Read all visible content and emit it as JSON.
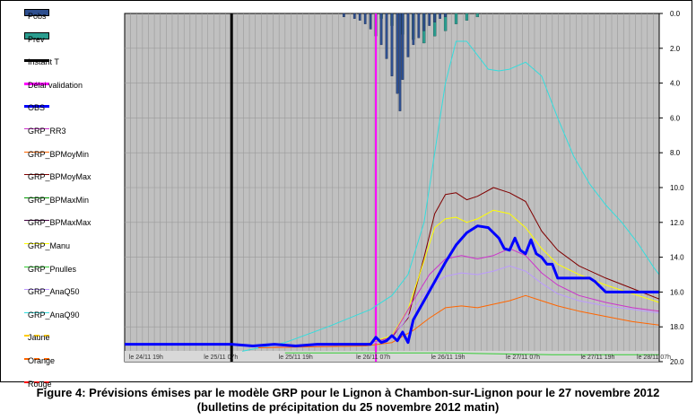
{
  "caption": {
    "line1": "Figure 4: Prévisions émises par le modèle GRP pour le Lignon à Chambon-sur-Lignon pour le 27 novembre 2012",
    "line2": "(bulletins de précipitation du 25 novembre 2012 matin)"
  },
  "legend": [
    {
      "label": "Pobs",
      "color": "#2e4f8f",
      "style": "bar"
    },
    {
      "label": "Prev",
      "color": "#2a9d8f",
      "style": "bar"
    },
    {
      "label": "Instant T",
      "color": "#000000",
      "style": "thick"
    },
    {
      "label": "Délai validation",
      "color": "#ff00ff",
      "style": "thick"
    },
    {
      "label": "OBS",
      "color": "#0000ff",
      "style": "thick"
    },
    {
      "label": "GRP_RR3",
      "color": "#cc33cc",
      "style": "line"
    },
    {
      "label": "GRP_BPMoyMin",
      "color": "#ff6600",
      "style": "line"
    },
    {
      "label": "GRP_BPMoyMax",
      "color": "#800000",
      "style": "line"
    },
    {
      "label": "GRP_BPMaxMin",
      "color": "#009900",
      "style": "line"
    },
    {
      "label": "GRP_BPMaxMax",
      "color": "#400040",
      "style": "line"
    },
    {
      "label": "GRP_Manu",
      "color": "#ffff00",
      "style": "line"
    },
    {
      "label": "GRP_Pnulles",
      "color": "#33cc33",
      "style": "line"
    },
    {
      "label": "GRP_AnaQ50",
      "color": "#bb99ff",
      "style": "line"
    },
    {
      "label": "GRP_AnaQ90",
      "color": "#33dddd",
      "style": "line"
    },
    {
      "label": "Jaune",
      "color": "#ffcc00",
      "style": "dash"
    },
    {
      "label": "Orange",
      "color": "#ff6600",
      "style": "dash"
    },
    {
      "label": "Rouge",
      "color": "#ff0000",
      "style": "dash"
    }
  ],
  "chart_data": {
    "type": "line",
    "title": "",
    "xlim": [
      0,
      1
    ],
    "x_ticks": [
      {
        "x": 0.04,
        "label": "le 24/11 19h"
      },
      {
        "x": 0.18,
        "label": "le 25/11 07h"
      },
      {
        "x": 0.32,
        "label": "le 25/11 19h"
      },
      {
        "x": 0.465,
        "label": "le 26/11 07h"
      },
      {
        "x": 0.605,
        "label": "le 26/11 19h"
      },
      {
        "x": 0.745,
        "label": "le 27/11 07h"
      },
      {
        "x": 0.885,
        "label": "le 27/11 19h"
      },
      {
        "x": 0.99,
        "label": "le 28/11 07h"
      }
    ],
    "y_right_ticks": [
      "0.0",
      "2.0",
      "4.0",
      "6.0",
      "8.0",
      "10.0",
      "12.0",
      "14.0",
      "16.0",
      "18.0",
      "20.0"
    ],
    "y_right_range": [
      0,
      20
    ],
    "grid": true,
    "legend_position": "left",
    "instant_t_x": 0.2,
    "delai_validation_x": 0.47,
    "series": [
      {
        "name": "GRP_AnaQ90",
        "color": "#33dddd",
        "points": [
          [
            0.22,
            19.4
          ],
          [
            0.3,
            18.9
          ],
          [
            0.38,
            18.0
          ],
          [
            0.46,
            17.0
          ],
          [
            0.5,
            16.2
          ],
          [
            0.53,
            15.0
          ],
          [
            0.56,
            12.0
          ],
          [
            0.58,
            8.0
          ],
          [
            0.6,
            4.0
          ],
          [
            0.62,
            1.6
          ],
          [
            0.64,
            1.6
          ],
          [
            0.66,
            2.4
          ],
          [
            0.68,
            3.2
          ],
          [
            0.7,
            3.3
          ],
          [
            0.72,
            3.2
          ],
          [
            0.75,
            2.8
          ],
          [
            0.78,
            3.6
          ],
          [
            0.81,
            6.0
          ],
          [
            0.84,
            8.2
          ],
          [
            0.87,
            9.8
          ],
          [
            0.9,
            11.0
          ],
          [
            0.93,
            12.0
          ],
          [
            0.96,
            13.2
          ],
          [
            0.99,
            14.6
          ],
          [
            1.0,
            15.0
          ]
        ]
      },
      {
        "name": "GRP_BPMoyMax",
        "color": "#800000",
        "points": [
          [
            0.25,
            19.2
          ],
          [
            0.45,
            19.0
          ],
          [
            0.5,
            18.6
          ],
          [
            0.53,
            17.5
          ],
          [
            0.56,
            14.0
          ],
          [
            0.58,
            11.5
          ],
          [
            0.6,
            10.4
          ],
          [
            0.62,
            10.3
          ],
          [
            0.64,
            10.7
          ],
          [
            0.66,
            10.5
          ],
          [
            0.69,
            10.0
          ],
          [
            0.72,
            10.3
          ],
          [
            0.75,
            10.8
          ],
          [
            0.78,
            12.5
          ],
          [
            0.81,
            13.6
          ],
          [
            0.85,
            14.5
          ],
          [
            0.9,
            15.2
          ],
          [
            0.95,
            15.8
          ],
          [
            1.0,
            16.4
          ]
        ]
      },
      {
        "name": "GRP_Manu",
        "color": "#ffff00",
        "points": [
          [
            0.25,
            19.2
          ],
          [
            0.45,
            19.0
          ],
          [
            0.5,
            18.5
          ],
          [
            0.53,
            17.0
          ],
          [
            0.56,
            14.2
          ],
          [
            0.58,
            12.3
          ],
          [
            0.6,
            11.8
          ],
          [
            0.62,
            11.7
          ],
          [
            0.64,
            12.0
          ],
          [
            0.66,
            11.8
          ],
          [
            0.69,
            11.3
          ],
          [
            0.72,
            11.5
          ],
          [
            0.75,
            12.3
          ],
          [
            0.78,
            13.5
          ],
          [
            0.81,
            14.4
          ],
          [
            0.85,
            15.0
          ],
          [
            0.9,
            15.6
          ],
          [
            0.95,
            16.1
          ],
          [
            1.0,
            16.6
          ]
        ]
      },
      {
        "name": "GRP_RR3",
        "color": "#cc33cc",
        "points": [
          [
            0.25,
            19.2
          ],
          [
            0.45,
            19.0
          ],
          [
            0.5,
            18.6
          ],
          [
            0.54,
            16.5
          ],
          [
            0.57,
            15.0
          ],
          [
            0.6,
            14.1
          ],
          [
            0.63,
            13.9
          ],
          [
            0.66,
            14.1
          ],
          [
            0.69,
            13.9
          ],
          [
            0.72,
            13.5
          ],
          [
            0.75,
            13.9
          ],
          [
            0.78,
            14.9
          ],
          [
            0.81,
            15.6
          ],
          [
            0.85,
            16.2
          ],
          [
            0.9,
            16.6
          ],
          [
            0.95,
            16.9
          ],
          [
            1.0,
            17.1
          ]
        ]
      },
      {
        "name": "GRP_AnaQ50",
        "color": "#bb99ff",
        "points": [
          [
            0.25,
            19.2
          ],
          [
            0.45,
            19.0
          ],
          [
            0.5,
            18.7
          ],
          [
            0.54,
            17.0
          ],
          [
            0.57,
            15.7
          ],
          [
            0.6,
            15.1
          ],
          [
            0.63,
            14.9
          ],
          [
            0.66,
            15.0
          ],
          [
            0.69,
            14.8
          ],
          [
            0.72,
            14.5
          ],
          [
            0.75,
            14.8
          ],
          [
            0.78,
            15.5
          ],
          [
            0.81,
            16.1
          ],
          [
            0.85,
            16.5
          ],
          [
            0.9,
            16.8
          ],
          [
            0.95,
            17.0
          ],
          [
            1.0,
            17.2
          ]
        ]
      },
      {
        "name": "GRP_BPMoyMin",
        "color": "#ff6600",
        "points": [
          [
            0.25,
            19.2
          ],
          [
            0.45,
            19.1
          ],
          [
            0.5,
            18.9
          ],
          [
            0.54,
            18.2
          ],
          [
            0.57,
            17.5
          ],
          [
            0.6,
            16.9
          ],
          [
            0.63,
            16.8
          ],
          [
            0.66,
            16.9
          ],
          [
            0.69,
            16.7
          ],
          [
            0.72,
            16.5
          ],
          [
            0.75,
            16.2
          ],
          [
            0.78,
            16.5
          ],
          [
            0.81,
            16.8
          ],
          [
            0.85,
            17.1
          ],
          [
            0.9,
            17.4
          ],
          [
            0.95,
            17.7
          ],
          [
            1.0,
            17.9
          ]
        ]
      },
      {
        "name": "GRP_Pnulles",
        "color": "#33cc33",
        "points": [
          [
            0.3,
            19.5
          ],
          [
            0.5,
            19.5
          ],
          [
            0.6,
            19.5
          ],
          [
            0.8,
            19.6
          ],
          [
            1.0,
            19.6
          ]
        ]
      },
      {
        "name": "OBS",
        "color": "#0000ff",
        "width": 3,
        "points": [
          [
            0.0,
            19.0
          ],
          [
            0.2,
            19.0
          ],
          [
            0.24,
            19.1
          ],
          [
            0.28,
            19.0
          ],
          [
            0.32,
            19.1
          ],
          [
            0.36,
            19.0
          ],
          [
            0.42,
            19.0
          ],
          [
            0.46,
            19.0
          ],
          [
            0.47,
            18.6
          ],
          [
            0.48,
            18.9
          ],
          [
            0.49,
            18.8
          ],
          [
            0.5,
            18.5
          ],
          [
            0.51,
            18.8
          ],
          [
            0.52,
            18.3
          ],
          [
            0.53,
            18.9
          ],
          [
            0.54,
            17.6
          ],
          [
            0.56,
            16.5
          ],
          [
            0.58,
            15.4
          ],
          [
            0.6,
            14.3
          ],
          [
            0.62,
            13.3
          ],
          [
            0.64,
            12.6
          ],
          [
            0.66,
            12.2
          ],
          [
            0.68,
            12.3
          ],
          [
            0.7,
            12.9
          ],
          [
            0.71,
            13.5
          ],
          [
            0.72,
            13.6
          ],
          [
            0.73,
            12.9
          ],
          [
            0.74,
            13.6
          ],
          [
            0.75,
            13.8
          ],
          [
            0.76,
            13.0
          ],
          [
            0.77,
            13.8
          ],
          [
            0.78,
            14.0
          ],
          [
            0.79,
            14.4
          ],
          [
            0.8,
            14.4
          ],
          [
            0.81,
            15.2
          ],
          [
            0.83,
            15.2
          ],
          [
            0.87,
            15.2
          ],
          [
            0.88,
            15.4
          ],
          [
            0.9,
            16.0
          ],
          [
            0.92,
            16.0
          ],
          [
            0.95,
            16.0
          ],
          [
            0.97,
            16.0
          ],
          [
            0.99,
            16.0
          ],
          [
            1.0,
            16.0
          ]
        ]
      }
    ],
    "rain_obs": [
      [
        0.41,
        0.2
      ],
      [
        0.43,
        0.3
      ],
      [
        0.44,
        0.4
      ],
      [
        0.45,
        0.6
      ],
      [
        0.46,
        0.9
      ],
      [
        0.47,
        1.3
      ],
      [
        0.48,
        1.8
      ],
      [
        0.49,
        2.6
      ],
      [
        0.5,
        3.6
      ],
      [
        0.51,
        4.6
      ],
      [
        0.515,
        5.6
      ],
      [
        0.52,
        3.8
      ],
      [
        0.53,
        2.5
      ],
      [
        0.54,
        1.8
      ],
      [
        0.55,
        1.4
      ],
      [
        0.56,
        1.0
      ],
      [
        0.57,
        0.7
      ],
      [
        0.58,
        0.5
      ],
      [
        0.59,
        0.3
      ],
      [
        0.6,
        0.2
      ]
    ],
    "rain_prev": [
      [
        0.48,
        0.3
      ],
      [
        0.5,
        0.7
      ],
      [
        0.52,
        1.2
      ],
      [
        0.54,
        1.5
      ],
      [
        0.56,
        1.7
      ],
      [
        0.58,
        1.3
      ],
      [
        0.6,
        1.0
      ],
      [
        0.62,
        0.6
      ],
      [
        0.64,
        0.4
      ],
      [
        0.66,
        0.2
      ]
    ]
  }
}
